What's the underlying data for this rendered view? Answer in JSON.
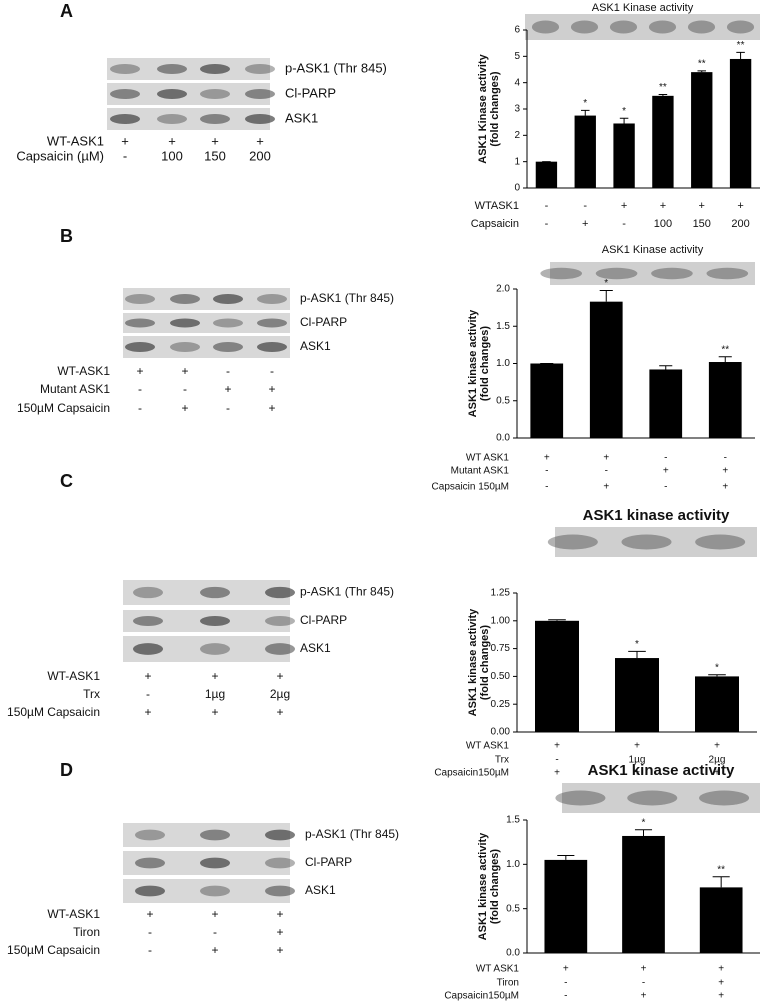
{
  "chart_data": [
    {
      "type": "bar",
      "title": "ASK1 Kinase activity",
      "ylabel": [
        "ASK1 Kinase activity",
        "(fold changes)"
      ],
      "values": [
        1,
        2.75,
        2.45,
        3.5,
        4.4,
        4.9
      ],
      "errors": [
        0,
        0.2,
        0.2,
        0.05,
        0.05,
        0.25
      ],
      "value_labels": [
        null,
        "*",
        "*",
        "**",
        "**",
        "**"
      ],
      "color": "#000000",
      "ylim": [
        0,
        6
      ],
      "yticks": [
        0,
        1,
        2,
        3,
        4,
        5,
        6
      ],
      "condition_rows": [
        {
          "label": "WTASK1",
          "marks": [
            "-",
            "-",
            "+",
            "+",
            "+",
            "+"
          ]
        },
        {
          "label": "Capsaicin",
          "marks": [
            "-",
            "+",
            "-",
            "100",
            "150",
            "200"
          ]
        }
      ]
    },
    {
      "type": "bar",
      "title": "ASK1 Kinase activity",
      "ylabel": [
        "ASK1 kinase activity",
        "(fold changes)"
      ],
      "values": [
        1,
        1.83,
        0.92,
        1.02
      ],
      "errors": [
        0,
        0.15,
        0.05,
        0.07
      ],
      "value_labels": [
        null,
        "*",
        null,
        "**"
      ],
      "color": "#000000",
      "ylim": [
        0,
        2
      ],
      "yticks": [
        {
          "value": 0,
          "label": "0.0"
        },
        {
          "value": 0.5,
          "label": "0.5"
        },
        {
          "value": 1,
          "label": "1.0"
        },
        {
          "value": 1.5,
          "label": "1.5"
        },
        {
          "value": 2,
          "label": "2.0"
        }
      ],
      "condition_rows": [
        {
          "label": "WT ASK1",
          "marks": [
            "+",
            "+",
            "-",
            "-"
          ]
        },
        {
          "label": "Mutant ASK1",
          "marks": [
            "-",
            "-",
            "+",
            "+"
          ]
        },
        {
          "label": "Capsaicin 150µM",
          "marks": [
            "-",
            "+",
            "-",
            "+"
          ]
        }
      ]
    },
    {
      "type": "bar",
      "title": "ASK1 kinase activity",
      "ylabel": [
        "ASK1 kinase activity",
        "(fold changes)"
      ],
      "values": [
        1,
        0.665,
        0.5
      ],
      "errors": [
        0.01,
        0.06,
        0.015
      ],
      "value_labels": [
        null,
        "*",
        "*"
      ],
      "color": "#000000",
      "ylim": [
        0,
        1.25
      ],
      "yticks": [
        {
          "value": 0,
          "label": "0.00"
        },
        {
          "value": 0.25,
          "label": "0.25"
        },
        {
          "value": 0.5,
          "label": "0.50"
        },
        {
          "value": 0.75,
          "label": "0.75"
        },
        {
          "value": 1,
          "label": "1.00"
        },
        {
          "value": 1.25,
          "label": "1.25"
        }
      ],
      "condition_rows": [
        {
          "label": "WT ASK1",
          "marks": [
            "+",
            "+",
            "+"
          ]
        },
        {
          "label": "Trx",
          "marks": [
            "-",
            "1µg",
            "2µg"
          ]
        },
        {
          "label": "Capsaicin150µM",
          "marks": [
            "+",
            "+",
            "+"
          ]
        }
      ]
    },
    {
      "type": "bar",
      "title": "ASK1 kinase activity",
      "ylabel": [
        "ASK1 kinase activity",
        "(fold changes)"
      ],
      "values": [
        1.05,
        1.32,
        0.74
      ],
      "errors": [
        0.05,
        0.07,
        0.12
      ],
      "value_labels": [
        null,
        "*",
        "**"
      ],
      "color": "#000000",
      "ylim": [
        0,
        1.5
      ],
      "yticks": [
        {
          "value": 0,
          "label": "0.0"
        },
        {
          "value": 0.5,
          "label": "0.5"
        },
        {
          "value": 1,
          "label": "1.0"
        },
        {
          "value": 1.5,
          "label": "1.5"
        }
      ],
      "condition_rows": [
        {
          "label": "WT ASK1",
          "marks": [
            "+",
            "+",
            "+"
          ]
        },
        {
          "label": "Tiron",
          "marks": [
            "-",
            "-",
            "+"
          ]
        },
        {
          "label": "Capsaicin150µM",
          "marks": [
            "-",
            "+",
            "+"
          ]
        }
      ]
    }
  ],
  "panels": [
    {
      "letter": "A",
      "blot_labels": [
        "p-ASK1 (Thr 845)",
        "Cl-PARP",
        "ASK1"
      ],
      "rows": [
        {
          "label": "WT-ASK1",
          "marks": [
            "+",
            "+",
            "+",
            "+"
          ]
        },
        {
          "label": "Capsaicin (µM)",
          "marks": [
            "-",
            "100",
            "150",
            "200"
          ]
        }
      ]
    },
    {
      "letter": "B",
      "blot_labels": [
        "p-ASK1 (Thr 845)",
        "Cl-PARP",
        "ASK1"
      ],
      "rows": [
        {
          "label": "WT-ASK1",
          "marks": [
            "+",
            "+",
            "-",
            "-"
          ]
        },
        {
          "label": "Mutant ASK1",
          "marks": [
            "-",
            "-",
            "+",
            "+"
          ]
        },
        {
          "label": "150µM Capsaicin",
          "marks": [
            "-",
            "+",
            "-",
            "+"
          ]
        }
      ]
    },
    {
      "letter": "C",
      "blot_labels": [
        "p-ASK1 (Thr 845)",
        "Cl-PARP",
        "ASK1"
      ],
      "rows": [
        {
          "label": "WT-ASK1",
          "marks": [
            "+",
            "+",
            "+"
          ]
        },
        {
          "label": "Trx",
          "marks": [
            "-",
            "1µg",
            "2µg"
          ]
        },
        {
          "label": "150µM Capsaicin",
          "marks": [
            "+",
            "+",
            "+"
          ]
        }
      ]
    },
    {
      "letter": "D",
      "blot_labels": [
        "p-ASK1 (Thr 845)",
        "Cl-PARP",
        "ASK1"
      ],
      "rows": [
        {
          "label": "WT-ASK1",
          "marks": [
            "+",
            "+",
            "+"
          ]
        },
        {
          "label": "Tiron",
          "marks": [
            "-",
            "-",
            "+"
          ]
        },
        {
          "label": "150µM Capsaicin",
          "marks": [
            "-",
            "+",
            "+"
          ]
        }
      ]
    }
  ]
}
